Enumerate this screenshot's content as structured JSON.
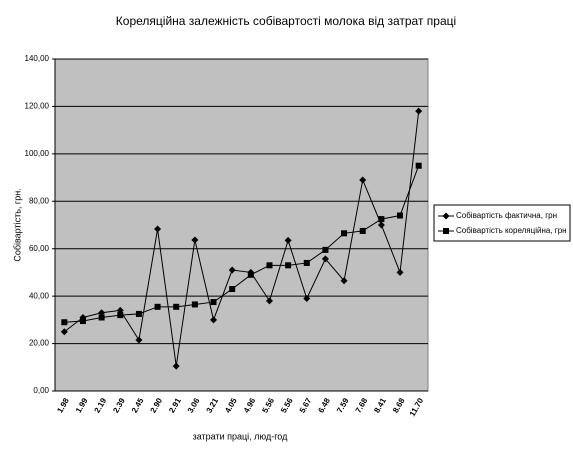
{
  "chart_data": {
    "type": "line",
    "title": "Кореляційна залежність собівартості молока від затрат праці",
    "xlabel": "затрати праці, люд-год",
    "ylabel": "Собівартість, грн.",
    "categories": [
      "1.98",
      "1.99",
      "2.19",
      "2.39",
      "2.45",
      "2.90",
      "2.91",
      "3.06",
      "3.21",
      "4.05",
      "4.96",
      "5.56",
      "5.56",
      "5.67",
      "6.48",
      "7.59",
      "7.68",
      "8.41",
      "8.68",
      "11.70"
    ],
    "series": [
      {
        "name": "Собівартість фактична, грн",
        "color": "#000000",
        "marker": "diamond",
        "values": [
          25,
          31,
          33,
          34,
          21.5,
          68.3,
          10.5,
          63.7,
          30,
          51,
          50,
          38,
          63.5,
          39,
          55.7,
          46.5,
          89,
          70,
          50,
          118
        ]
      },
      {
        "name": "Собівартість кореляційна, грн",
        "color": "#000000",
        "marker": "square",
        "values": [
          29,
          29.5,
          31,
          32,
          32.5,
          35.5,
          35.5,
          36.5,
          37.5,
          43,
          49,
          53,
          53,
          54,
          59.5,
          66.5,
          67.5,
          72.5,
          74,
          95
        ]
      }
    ],
    "ylim": [
      0,
      140
    ],
    "yticks": [
      {
        "value": 0,
        "label": "0,00"
      },
      {
        "value": 20,
        "label": "20,00"
      },
      {
        "value": 40,
        "label": "40,00"
      },
      {
        "value": 60,
        "label": "60,00"
      },
      {
        "value": 80,
        "label": "80,00"
      },
      {
        "value": 100,
        "label": "100,00"
      },
      {
        "value": 120,
        "label": "120,00"
      },
      {
        "value": 140,
        "label": "140,00"
      }
    ],
    "grid": true,
    "background": "#c0c0c0",
    "legend": "right"
  }
}
